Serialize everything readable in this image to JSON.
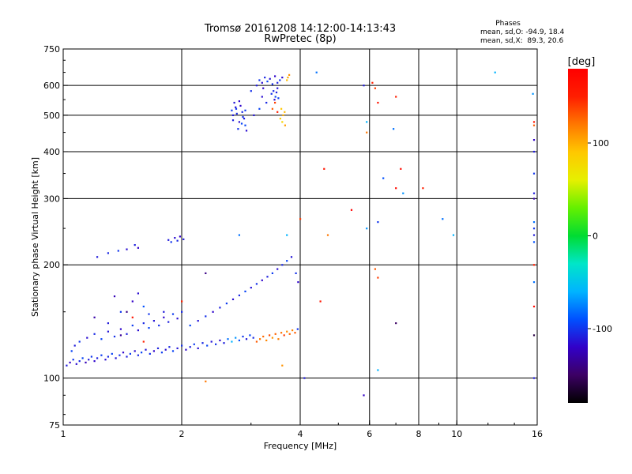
{
  "chart_data": {
    "type": "scatter",
    "title_line1": "Tromsø 20161208 14:12:00-14:13:43",
    "title_line2": "RwPretec (8p)",
    "xlabel": "Frequency [MHz]",
    "ylabel": "Stationary phase Virtual Height [km]",
    "x_scale": "log",
    "y_scale": "log",
    "xlim": [
      1,
      16
    ],
    "ylim": [
      75,
      750
    ],
    "x_ticks": [
      1,
      2,
      4,
      6,
      8,
      10,
      16
    ],
    "y_ticks": [
      75,
      100,
      200,
      300,
      400,
      500,
      600,
      750
    ],
    "x_gridlines": [
      2,
      4,
      6,
      8,
      10
    ],
    "y_gridlines": [
      100,
      200,
      300,
      400,
      500,
      600
    ],
    "grid": true,
    "stats": {
      "title": "Phases",
      "line_o": "mean, sd,O: -94.9, 18.4",
      "line_x": "mean, sd,X:  89.3, 20.6"
    },
    "colorbar": {
      "label": "[deg]",
      "range": [
        -180,
        180
      ],
      "ticks": [
        -100,
        0,
        100
      ],
      "colors": [
        "#000000",
        "#3c0064",
        "#3200c8",
        "#0050ff",
        "#00b4ff",
        "#00e6c8",
        "#00dc32",
        "#64f000",
        "#e6f000",
        "#ffc800",
        "#ff7800",
        "#ff1e00",
        "#ff0000"
      ]
    },
    "series": [
      {
        "points": [
          [
            1.02,
            108,
            -110
          ],
          [
            1.04,
            110,
            -120
          ],
          [
            1.06,
            112,
            -100
          ],
          [
            1.08,
            109,
            -115
          ],
          [
            1.1,
            111,
            -105
          ],
          [
            1.12,
            113,
            -95
          ],
          [
            1.14,
            110,
            -125
          ],
          [
            1.16,
            112,
            -110
          ],
          [
            1.18,
            114,
            -100
          ],
          [
            1.2,
            111,
            -118
          ],
          [
            1.22,
            113,
            -108
          ],
          [
            1.25,
            115,
            -98
          ],
          [
            1.28,
            112,
            -115
          ],
          [
            1.3,
            114,
            -105
          ],
          [
            1.33,
            116,
            -95
          ],
          [
            1.36,
            113,
            -112
          ],
          [
            1.39,
            115,
            -102
          ],
          [
            1.42,
            117,
            -118
          ],
          [
            1.45,
            114,
            -108
          ],
          [
            1.48,
            116,
            -98
          ],
          [
            1.52,
            118,
            -115
          ],
          [
            1.55,
            115,
            -105
          ],
          [
            1.58,
            117,
            -95
          ],
          [
            1.62,
            119,
            -112
          ],
          [
            1.66,
            116,
            -102
          ],
          [
            1.7,
            118,
            -118
          ],
          [
            1.74,
            120,
            -108
          ],
          [
            1.78,
            117,
            -98
          ],
          [
            1.82,
            119,
            -115
          ],
          [
            1.86,
            121,
            -105
          ],
          [
            1.9,
            118,
            -95
          ],
          [
            1.95,
            120,
            -112
          ],
          [
            2.0,
            122,
            -102
          ],
          [
            2.05,
            119,
            -118
          ],
          [
            2.1,
            121,
            -108
          ],
          [
            2.15,
            123,
            -98
          ],
          [
            2.2,
            120,
            -115
          ],
          [
            2.26,
            124,
            -105
          ],
          [
            2.32,
            122,
            -95
          ],
          [
            2.38,
            125,
            -112
          ],
          [
            2.44,
            123,
            -102
          ],
          [
            2.5,
            126,
            -118
          ],
          [
            2.56,
            124,
            -108
          ],
          [
            2.62,
            127,
            -80
          ],
          [
            2.68,
            125,
            -60
          ],
          [
            2.74,
            128,
            -70
          ],
          [
            2.8,
            126,
            -90
          ],
          [
            2.86,
            129,
            -100
          ],
          [
            2.92,
            127,
            -110
          ],
          [
            2.98,
            130,
            -95
          ],
          [
            3.04,
            128,
            -105
          ],
          [
            3.1,
            125,
            130
          ],
          [
            3.16,
            127,
            120
          ],
          [
            3.22,
            129,
            125
          ],
          [
            3.28,
            126,
            115
          ],
          [
            3.34,
            130,
            135
          ],
          [
            3.4,
            128,
            110
          ],
          [
            3.46,
            131,
            128
          ],
          [
            3.52,
            127,
            118
          ],
          [
            3.58,
            132,
            122
          ],
          [
            3.64,
            130,
            140
          ],
          [
            3.7,
            133,
            112
          ],
          [
            3.76,
            131,
            126
          ],
          [
            3.82,
            134,
            116
          ],
          [
            3.88,
            132,
            130
          ],
          [
            3.94,
            135,
            -100
          ],
          [
            1.05,
            118,
            -95
          ],
          [
            1.07,
            122,
            -110
          ],
          [
            1.1,
            125,
            -100
          ],
          [
            1.15,
            128,
            -115
          ],
          [
            1.2,
            131,
            -105
          ],
          [
            1.25,
            127,
            -95
          ],
          [
            1.3,
            133,
            -112
          ],
          [
            1.35,
            129,
            -102
          ],
          [
            1.4,
            135,
            -118
          ],
          [
            1.45,
            131,
            -108
          ],
          [
            1.5,
            138,
            -98
          ],
          [
            1.55,
            134,
            -115
          ],
          [
            1.6,
            140,
            -105
          ],
          [
            1.65,
            136,
            -95
          ],
          [
            1.7,
            142,
            -112
          ],
          [
            1.75,
            138,
            -102
          ],
          [
            1.8,
            145,
            -118
          ],
          [
            1.85,
            141,
            -108
          ],
          [
            1.9,
            148,
            -98
          ],
          [
            1.95,
            144,
            -115
          ],
          [
            2.0,
            150,
            -105
          ],
          [
            2.1,
            138,
            -95
          ],
          [
            2.2,
            142,
            -112
          ],
          [
            2.3,
            146,
            -102
          ],
          [
            2.4,
            150,
            -118
          ],
          [
            2.5,
            154,
            -108
          ],
          [
            2.6,
            158,
            -98
          ],
          [
            2.7,
            162,
            -115
          ],
          [
            2.8,
            166,
            -105
          ],
          [
            2.9,
            170,
            -95
          ],
          [
            3.0,
            174,
            -112
          ],
          [
            3.1,
            178,
            -102
          ],
          [
            3.2,
            182,
            -118
          ],
          [
            3.3,
            186,
            -108
          ],
          [
            3.4,
            190,
            -98
          ],
          [
            3.5,
            195,
            -115
          ],
          [
            3.6,
            200,
            -105
          ],
          [
            3.7,
            205,
            -95
          ],
          [
            3.8,
            210,
            -112
          ],
          [
            3.9,
            190,
            -102
          ],
          [
            3.95,
            180,
            -118
          ],
          [
            1.2,
            145,
            -130
          ],
          [
            1.3,
            140,
            -110
          ],
          [
            1.4,
            150,
            -100
          ],
          [
            1.5,
            160,
            -120
          ],
          [
            1.6,
            155,
            -90
          ],
          [
            1.35,
            165,
            -125
          ],
          [
            1.45,
            150,
            -140
          ],
          [
            1.55,
            168,
            -115
          ],
          [
            1.65,
            148,
            -100
          ],
          [
            1.4,
            130,
            -135
          ],
          [
            1.6,
            125,
            150
          ],
          [
            1.5,
            145,
            160
          ],
          [
            1.22,
            210,
            -110
          ],
          [
            1.3,
            215,
            -105
          ],
          [
            1.38,
            218,
            -100
          ],
          [
            1.45,
            220,
            -115
          ],
          [
            1.52,
            226,
            -108
          ],
          [
            1.55,
            222,
            -120
          ],
          [
            1.85,
            233,
            -110
          ],
          [
            1.88,
            230,
            -100
          ],
          [
            1.92,
            236,
            -115
          ],
          [
            1.95,
            232,
            -105
          ],
          [
            1.98,
            238,
            -120
          ],
          [
            2.02,
            234,
            -110
          ],
          [
            2.7,
            500,
            -110
          ],
          [
            2.75,
            520,
            -100
          ],
          [
            2.8,
            480,
            -115
          ],
          [
            2.85,
            510,
            -105
          ],
          [
            2.9,
            470,
            -95
          ],
          [
            2.72,
            540,
            -112
          ],
          [
            2.78,
            460,
            -102
          ],
          [
            2.82,
            530,
            -118
          ],
          [
            2.88,
            490,
            -108
          ],
          [
            2.68,
            515,
            -98
          ],
          [
            2.92,
            455,
            -115
          ],
          [
            2.76,
            505,
            -105
          ],
          [
            2.84,
            475,
            -95
          ],
          [
            2.74,
            525,
            -112
          ],
          [
            2.86,
            495,
            -102
          ],
          [
            2.8,
            545,
            -118
          ],
          [
            2.7,
            485,
            -108
          ],
          [
            2.9,
            515,
            -98
          ],
          [
            3.1,
            600,
            -110
          ],
          [
            3.15,
            620,
            -100
          ],
          [
            3.2,
            610,
            -115
          ],
          [
            3.25,
            630,
            -105
          ],
          [
            3.3,
            615,
            -95
          ],
          [
            3.35,
            625,
            -112
          ],
          [
            3.4,
            605,
            -102
          ],
          [
            3.45,
            635,
            -118
          ],
          [
            3.5,
            610,
            -108
          ],
          [
            3.55,
            620,
            -98
          ],
          [
            3.6,
            630,
            -115
          ],
          [
            3.42,
            580,
            -105
          ],
          [
            3.46,
            560,
            -95
          ],
          [
            3.5,
            590,
            -112
          ],
          [
            3.38,
            570,
            -102
          ],
          [
            3.44,
            550,
            -118
          ],
          [
            3.48,
            575,
            -108
          ],
          [
            3.52,
            555,
            -98
          ],
          [
            3.2,
            560,
            -115
          ],
          [
            3.28,
            540,
            -105
          ],
          [
            3.15,
            520,
            -95
          ],
          [
            3.05,
            500,
            -112
          ],
          [
            3.0,
            580,
            -102
          ],
          [
            3.22,
            590,
            -118
          ],
          [
            3.58,
            520,
            90
          ],
          [
            3.62,
            500,
            100
          ],
          [
            3.6,
            480,
            80
          ],
          [
            3.65,
            510,
            95
          ],
          [
            3.56,
            490,
            85
          ],
          [
            3.66,
            470,
            105
          ],
          [
            3.7,
            620,
            95
          ],
          [
            3.75,
            640,
            110
          ],
          [
            3.72,
            630,
            100
          ],
          [
            3.4,
            520,
            130
          ],
          [
            3.45,
            540,
            140
          ],
          [
            3.5,
            510,
            150
          ],
          [
            4.4,
            650,
            -80
          ],
          [
            5.8,
            600,
            -110
          ],
          [
            5.9,
            480,
            -60
          ],
          [
            6.1,
            610,
            150
          ],
          [
            6.2,
            590,
            140
          ],
          [
            6.3,
            540,
            160
          ],
          [
            7.0,
            560,
            150
          ],
          [
            6.9,
            460,
            -80
          ],
          [
            5.9,
            450,
            120
          ],
          [
            6.5,
            340,
            -90
          ],
          [
            7.0,
            320,
            170
          ],
          [
            7.3,
            310,
            -70
          ],
          [
            8.2,
            320,
            150
          ],
          [
            4.6,
            360,
            160
          ],
          [
            7.2,
            360,
            170
          ],
          [
            5.4,
            280,
            180
          ],
          [
            6.3,
            260,
            -100
          ],
          [
            9.2,
            265,
            -80
          ],
          [
            9.8,
            240,
            -60
          ],
          [
            4.0,
            265,
            140
          ],
          [
            4.7,
            240,
            120
          ],
          [
            6.2,
            195,
            130
          ],
          [
            6.3,
            185,
            140
          ],
          [
            4.5,
            160,
            160
          ],
          [
            5.9,
            250,
            -70
          ],
          [
            7.0,
            140,
            -150
          ],
          [
            5.8,
            90,
            -120
          ],
          [
            6.3,
            105,
            -60
          ],
          [
            4.1,
            100,
            -110
          ],
          [
            3.6,
            108,
            110
          ],
          [
            12.5,
            650,
            -60
          ],
          [
            15.6,
            570,
            -70
          ],
          [
            15.7,
            470,
            130
          ],
          [
            15.7,
            430,
            -120
          ],
          [
            15.7,
            400,
            -110
          ],
          [
            15.7,
            350,
            -100
          ],
          [
            15.7,
            310,
            -110
          ],
          [
            15.7,
            260,
            -80
          ],
          [
            15.7,
            250,
            -100
          ],
          [
            15.7,
            240,
            -110
          ],
          [
            15.7,
            230,
            -90
          ],
          [
            15.7,
            200,
            150
          ],
          [
            15.7,
            155,
            170
          ],
          [
            15.7,
            130,
            -160
          ],
          [
            15.7,
            100,
            -110
          ],
          [
            2.3,
            190,
            -140
          ],
          [
            2.0,
            160,
            150
          ],
          [
            1.8,
            150,
            -110
          ],
          [
            2.8,
            240,
            -80
          ],
          [
            3.7,
            240,
            -60
          ],
          [
            2.3,
            98,
            120
          ],
          [
            15.7,
            480,
            160
          ],
          [
            15.7,
            180,
            -80
          ],
          [
            15.7,
            300,
            -130
          ]
        ]
      }
    ]
  }
}
